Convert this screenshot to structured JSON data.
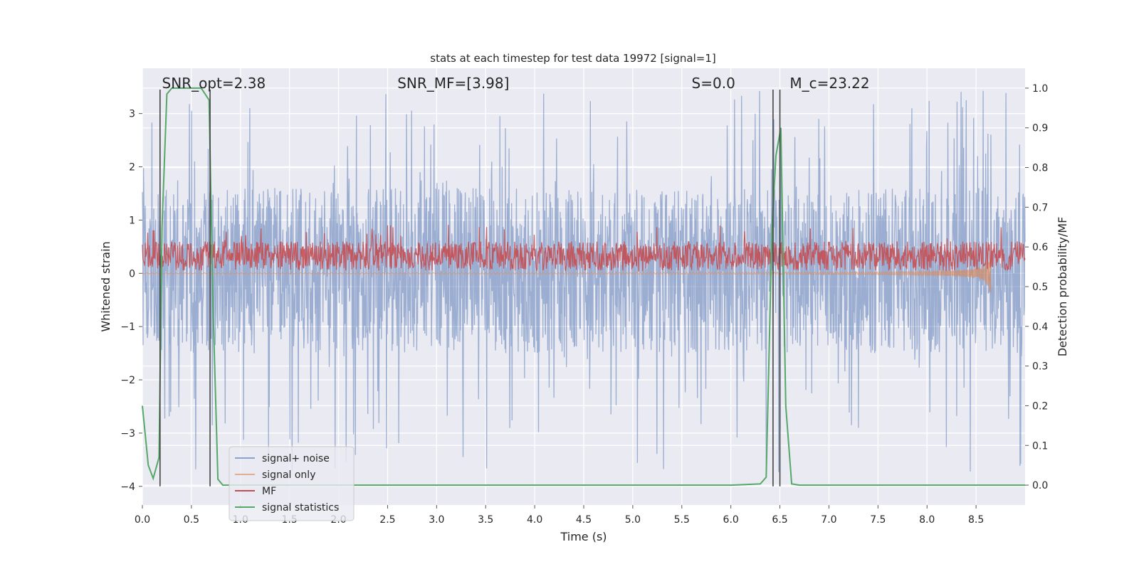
{
  "chart_data": {
    "type": "line",
    "title": "stats at each timestep for test data 19972 [signal=1]",
    "xlabel": "Time (s)",
    "ylabel_left": "Whitened strain",
    "ylabel_right": "Detection probability/MF",
    "xlim": [
      0.0,
      9.0
    ],
    "ylim_left": [
      -4.35,
      3.85
    ],
    "ylim_right": [
      -0.05,
      1.05
    ],
    "x_ticks": [
      "0.0",
      "0.5",
      "1.0",
      "1.5",
      "2.0",
      "2.5",
      "3.0",
      "3.5",
      "4.0",
      "4.5",
      "5.0",
      "5.5",
      "6.0",
      "6.5",
      "7.0",
      "7.5",
      "8.0",
      "8.5"
    ],
    "y_ticks_left": [
      "−4",
      "−3",
      "−2",
      "−1",
      "0",
      "1",
      "2",
      "3"
    ],
    "y_ticks_right": [
      "0.0",
      "0.1",
      "0.2",
      "0.3",
      "0.4",
      "0.5",
      "0.6",
      "0.7",
      "0.8",
      "0.9",
      "1.0"
    ],
    "grid": true,
    "legend_position": "lower-left",
    "annotations": [
      {
        "text": "SNR_opt=2.38",
        "x": 0.2
      },
      {
        "text": "SNR_MF=[3.98]",
        "x": 2.6
      },
      {
        "text": "S=0.0",
        "x": 5.6
      },
      {
        "text": "M_c=23.22",
        "x": 6.6
      }
    ],
    "vertical_lines": [
      0.18,
      0.69,
      6.43,
      6.5
    ],
    "vline_range_left": [
      -4.0,
      3.45
    ],
    "series": [
      {
        "name": "signal+ noise",
        "color": "#4c72b0",
        "axis": "left",
        "kind": "noise",
        "x_range": [
          0.0,
          9.0
        ],
        "center": -0.1,
        "typical_range": [
          -1.5,
          1.6
        ],
        "peak_max": 3.45,
        "peak_min": -3.75
      },
      {
        "name": "signal only",
        "color": "#dd8452",
        "axis": "left",
        "kind": "chirp",
        "x_range": [
          0.0,
          8.65
        ],
        "center": 0.0,
        "max_amplitude": 0.45
      },
      {
        "name": "MF",
        "color": "#c44e52",
        "axis": "left",
        "kind": "noise",
        "x_range": [
          0.0,
          9.0
        ],
        "center": 0.3,
        "typical_range": [
          0.05,
          0.6
        ],
        "peak_max": 0.95,
        "peak_min": 0.02
      },
      {
        "name": "signal statistics",
        "color": "#55a868",
        "axis": "right",
        "kind": "line",
        "x": [
          0.0,
          0.06,
          0.11,
          0.17,
          0.2,
          0.25,
          0.3,
          0.6,
          0.68,
          0.72,
          0.77,
          0.82,
          0.9,
          2.0,
          4.0,
          6.0,
          6.3,
          6.36,
          6.42,
          6.46,
          6.51,
          6.56,
          6.62,
          6.7,
          7.0,
          9.0
        ],
        "y": [
          0.2,
          0.05,
          0.017,
          0.07,
          0.65,
          0.985,
          1.0,
          1.0,
          0.97,
          0.45,
          0.015,
          0.0,
          0.0,
          0.0,
          0.0,
          0.0,
          0.003,
          0.02,
          0.65,
          0.83,
          0.9,
          0.2,
          0.003,
          0.0,
          0.0,
          0.0
        ]
      }
    ]
  }
}
